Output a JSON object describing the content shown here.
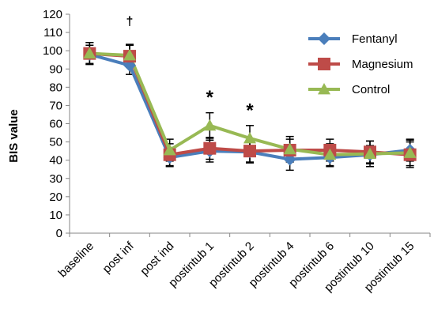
{
  "chart_data": {
    "type": "line",
    "xlabel": "",
    "ylabel": "BIS value",
    "ylim": [
      0,
      120
    ],
    "ytick_step": 10,
    "grid": false,
    "legend_position": "top-right",
    "categories": [
      "baseline",
      "post inf",
      "post ind",
      "postintub 1",
      "postintub 2",
      "postintub 4",
      "postintub 6",
      "postintub 10",
      "postintub 15"
    ],
    "series": [
      {
        "name": "Fentanyl",
        "color": "#4a7ebb",
        "marker": "diamond",
        "values": [
          98,
          92,
          41.5,
          45,
          44.5,
          40.5,
          41.5,
          43,
          45.5
        ],
        "errors": [
          5,
          5,
          5,
          6,
          6,
          6,
          5,
          5,
          6
        ]
      },
      {
        "name": "Magnesium",
        "color": "#be4b48",
        "marker": "square",
        "values": [
          98.5,
          97,
          43,
          46.5,
          45,
          45.5,
          45.5,
          44.5,
          43
        ],
        "errors": [
          6,
          6,
          6,
          6,
          6,
          6,
          6,
          6,
          7
        ]
      },
      {
        "name": "Control",
        "color": "#98b954",
        "marker": "triangle",
        "values": [
          98.5,
          97.5,
          45.5,
          59,
          52,
          46,
          43,
          43.5,
          44
        ],
        "errors": [
          6,
          6,
          6,
          7,
          7,
          7,
          6,
          7,
          7
        ]
      }
    ],
    "annotations": [
      {
        "text": "†",
        "category_index": 1,
        "y": 114
      },
      {
        "text": "*",
        "category_index": 3,
        "y": 71
      },
      {
        "text": "*",
        "category_index": 4,
        "y": 64
      }
    ]
  }
}
